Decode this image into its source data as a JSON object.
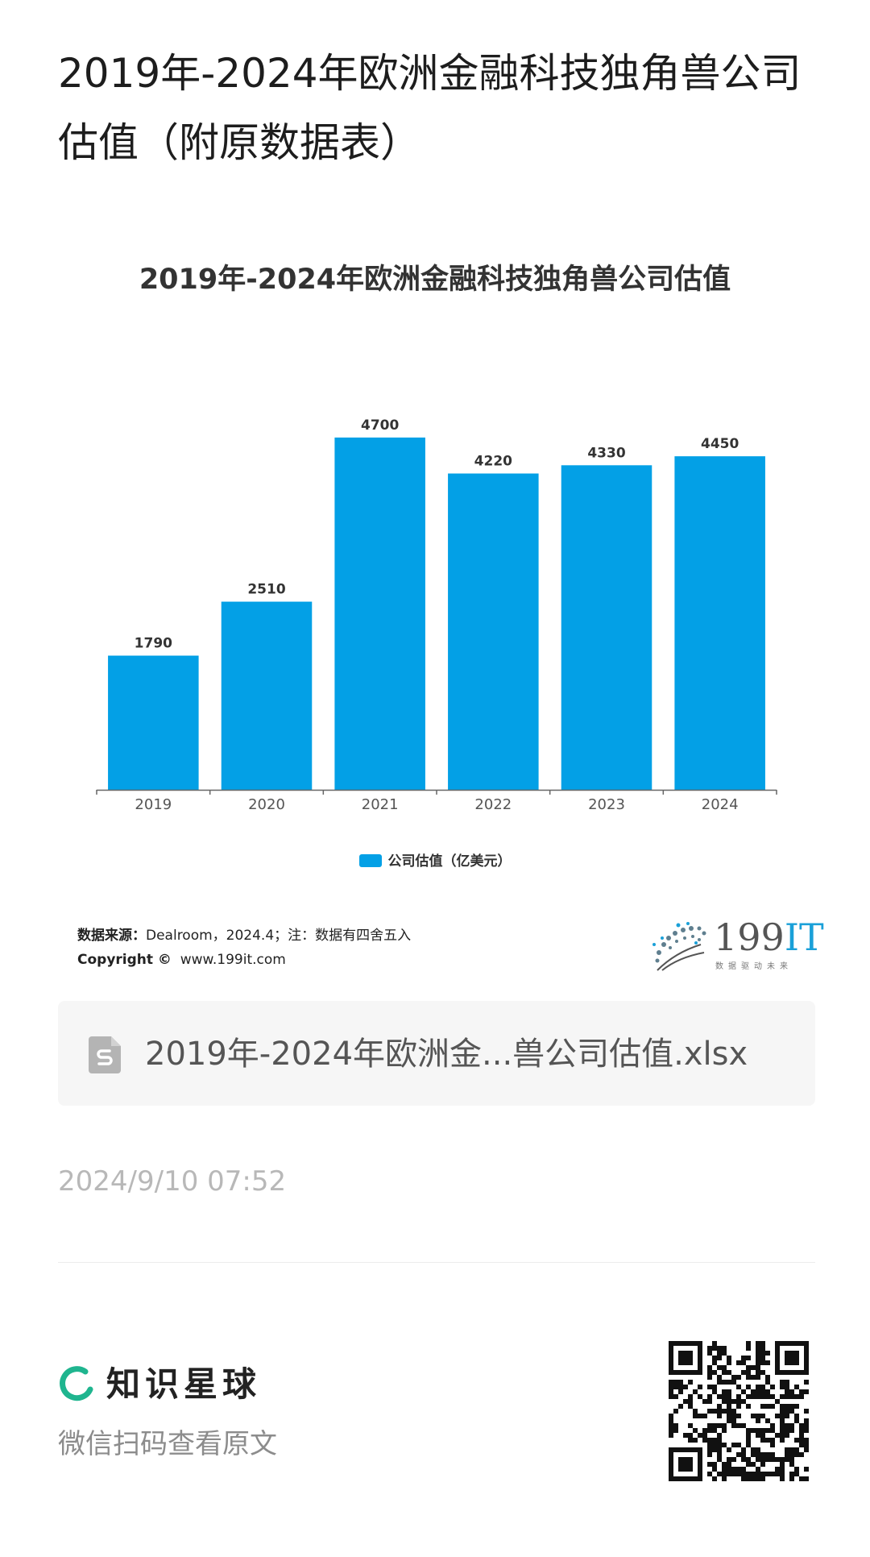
{
  "page": {
    "title": "2019年-2024年欧洲金融科技独角兽公司估值（附原数据表）"
  },
  "chart_data": {
    "type": "bar",
    "title": "2019年-2024年欧洲金融科技独角兽公司估值",
    "categories": [
      "2019",
      "2020",
      "2021",
      "2022",
      "2023",
      "2024"
    ],
    "series": [
      {
        "name": "公司估值（亿美元）",
        "values": [
          1790,
          2510,
          4700,
          4220,
          4330,
          4450
        ],
        "color": "#03a0e6"
      }
    ],
    "ylim": [
      0,
      5000
    ],
    "grid": false,
    "legend": "bottom-center",
    "data_labels": true
  },
  "source": {
    "label": "数据来源：",
    "text": "Dealroom，2024.4；注：数据有四舍五入",
    "copyright_label": "Copyright ©",
    "copyright_site": "www.199it.com"
  },
  "logo": {
    "main": "199",
    "accent": "IT",
    "tagline": "数据驱动未来"
  },
  "file": {
    "name": "2019年-2024年欧洲金...兽公司估值.xlsx",
    "icon": "spreadsheet-file-icon"
  },
  "meta": {
    "timestamp": "2024/9/10 07:52"
  },
  "footer": {
    "brand": "知识星球",
    "scan_hint": "微信扫码查看原文",
    "brand_color": "#1fb58f"
  }
}
